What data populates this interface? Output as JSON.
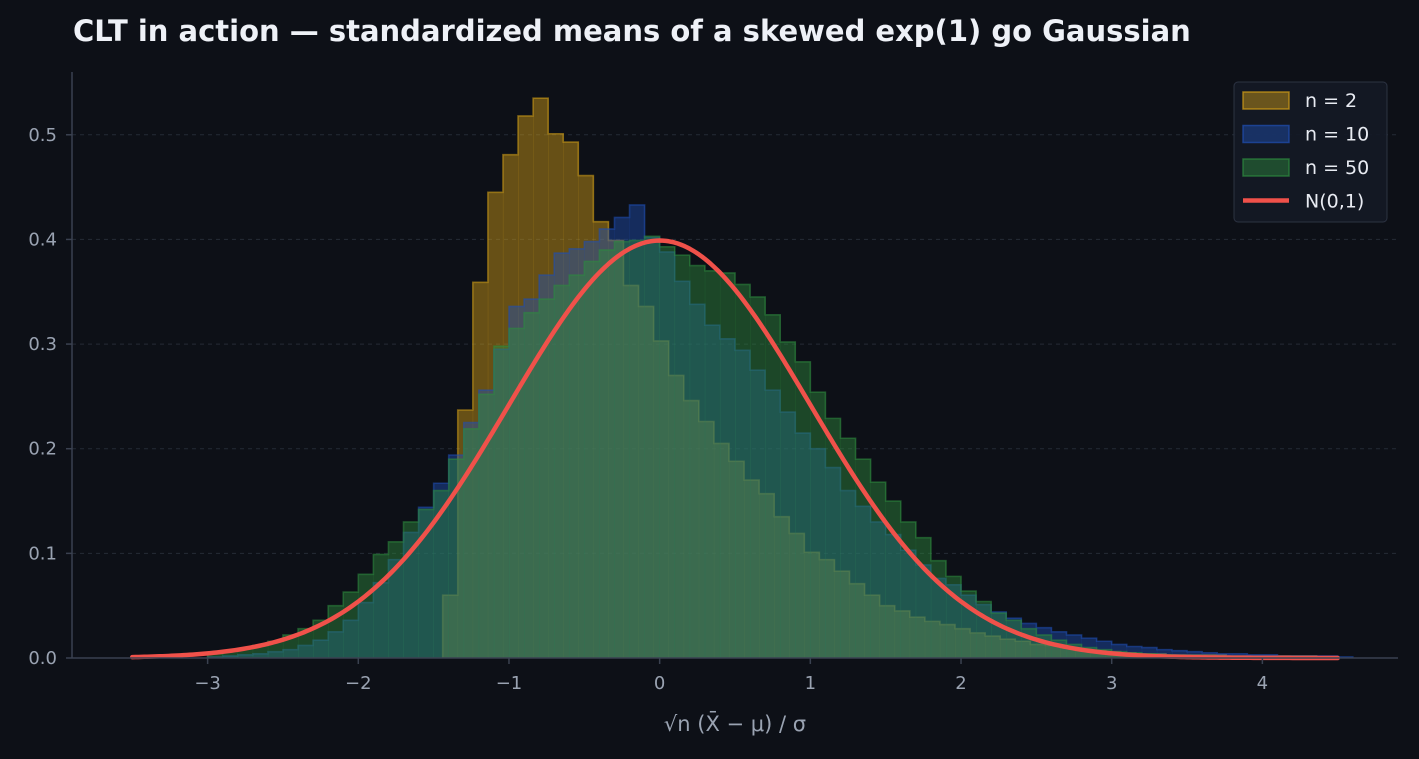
{
  "title": "CLT in action — standardized means of a skewed exp(1) go Gaussian",
  "chart_data": {
    "type": "histogram",
    "title": "CLT in action — standardized means of a skewed exp(1) go Gaussian",
    "xlabel": "√n (X̄ − μ) / σ",
    "ylabel": "",
    "xlim": [
      -3.9,
      4.9
    ],
    "ylim": [
      0,
      0.56
    ],
    "x_ticks": [
      -3,
      -2,
      -1,
      0,
      1,
      2,
      3,
      4
    ],
    "x_tick_labels": [
      "−3",
      "−2",
      "−1",
      "0",
      "1",
      "2",
      "3",
      "4"
    ],
    "y_ticks": [
      0.0,
      0.1,
      0.2,
      0.3,
      0.4,
      0.5
    ],
    "y_tick_labels": [
      "0.0",
      "0.1",
      "0.2",
      "0.3",
      "0.4",
      "0.5"
    ],
    "grid": "horizontal dashed",
    "legend_position": "top-right",
    "bin_width": 0.1,
    "series": [
      {
        "name": "n = 2",
        "kind": "histogram",
        "color": "#d4a017",
        "start": -1.44,
        "values": [
          0.06,
          0.237,
          0.359,
          0.445,
          0.481,
          0.518,
          0.535,
          0.501,
          0.493,
          0.461,
          0.417,
          0.399,
          0.356,
          0.336,
          0.303,
          0.27,
          0.246,
          0.226,
          0.205,
          0.188,
          0.17,
          0.157,
          0.135,
          0.119,
          0.101,
          0.094,
          0.083,
          0.071,
          0.06,
          0.05,
          0.045,
          0.039,
          0.035,
          0.032,
          0.028,
          0.024,
          0.021,
          0.018,
          0.016,
          0.013,
          0.012,
          0.01,
          0.008,
          0.007,
          0.006,
          0.005,
          0.004,
          0.004,
          0.003,
          0.003,
          0.003,
          0.003,
          0.002,
          0.002,
          0.002,
          0.002,
          0.002,
          0.002
        ]
      },
      {
        "name": "n = 10",
        "kind": "histogram",
        "color": "#1f4fb4",
        "start": -3.0,
        "values": [
          0.001,
          0.002,
          0.003,
          0.004,
          0.006,
          0.008,
          0.012,
          0.017,
          0.025,
          0.036,
          0.053,
          0.072,
          0.094,
          0.12,
          0.144,
          0.167,
          0.194,
          0.225,
          0.256,
          0.295,
          0.336,
          0.343,
          0.366,
          0.387,
          0.391,
          0.398,
          0.41,
          0.421,
          0.433,
          0.402,
          0.388,
          0.36,
          0.338,
          0.318,
          0.305,
          0.294,
          0.275,
          0.256,
          0.235,
          0.215,
          0.2,
          0.182,
          0.16,
          0.145,
          0.13,
          0.118,
          0.103,
          0.089,
          0.076,
          0.07,
          0.06,
          0.051,
          0.044,
          0.038,
          0.033,
          0.029,
          0.025,
          0.022,
          0.019,
          0.016,
          0.013,
          0.011,
          0.01,
          0.008,
          0.007,
          0.006,
          0.005,
          0.004,
          0.004,
          0.003,
          0.003,
          0.002,
          0.002,
          0.002,
          0.002,
          0.001
        ]
      },
      {
        "name": "n = 50",
        "kind": "histogram",
        "color": "#2e8b3e",
        "start": -3.0,
        "values": [
          0.004,
          0.007,
          0.009,
          0.012,
          0.016,
          0.022,
          0.028,
          0.036,
          0.05,
          0.063,
          0.08,
          0.099,
          0.111,
          0.13,
          0.142,
          0.16,
          0.19,
          0.219,
          0.252,
          0.298,
          0.315,
          0.33,
          0.343,
          0.356,
          0.366,
          0.379,
          0.39,
          0.398,
          0.399,
          0.403,
          0.393,
          0.385,
          0.375,
          0.37,
          0.368,
          0.357,
          0.345,
          0.328,
          0.302,
          0.283,
          0.254,
          0.229,
          0.21,
          0.19,
          0.168,
          0.15,
          0.13,
          0.115,
          0.093,
          0.078,
          0.064,
          0.054,
          0.043,
          0.036,
          0.028,
          0.022,
          0.017,
          0.013,
          0.01,
          0.008,
          0.006,
          0.005,
          0.004,
          0.003,
          0.002
        ]
      },
      {
        "name": "N(0,1)",
        "kind": "line",
        "color": "#f0514a",
        "x": [
          -3.5,
          -3.25,
          -3.0,
          -2.75,
          -2.5,
          -2.25,
          -2.0,
          -1.75,
          -1.5,
          -1.25,
          -1.0,
          -0.75,
          -0.5,
          -0.25,
          0.0,
          0.25,
          0.5,
          0.75,
          1.0,
          1.25,
          1.5,
          1.75,
          2.0,
          2.25,
          2.5,
          2.75,
          3.0,
          3.25,
          3.5,
          3.75,
          4.0,
          4.25,
          4.5
        ],
        "y": [
          0.0009,
          0.002,
          0.0044,
          0.0091,
          0.0175,
          0.0317,
          0.054,
          0.0863,
          0.1295,
          0.1826,
          0.242,
          0.3011,
          0.3521,
          0.3867,
          0.3989,
          0.3867,
          0.3521,
          0.3011,
          0.242,
          0.1826,
          0.1295,
          0.0863,
          0.054,
          0.0317,
          0.0175,
          0.0091,
          0.0044,
          0.002,
          0.0009,
          0.0004,
          0.0001,
          0.0,
          0.0
        ]
      }
    ]
  },
  "legend": {
    "items": [
      "n = 2",
      "n = 10",
      "n = 50",
      "N(0,1)"
    ]
  }
}
